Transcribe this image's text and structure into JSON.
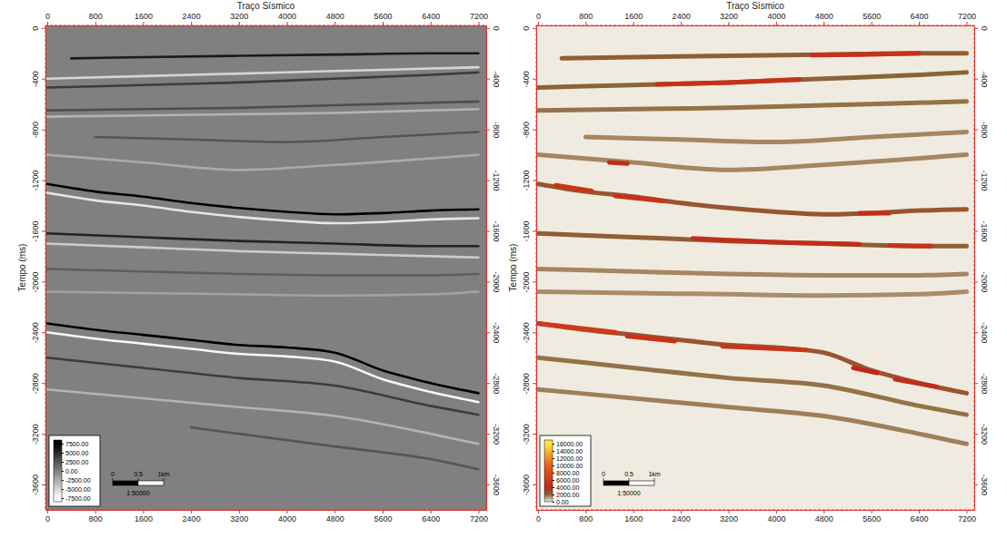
{
  "chart_data": [
    {
      "type": "seismic",
      "x_label": "Traço Sísmico",
      "y_label": "Tempo (ms)",
      "xlim": [
        -30,
        7330
      ],
      "xticks": [
        0,
        800,
        1600,
        2400,
        3200,
        4000,
        4800,
        5600,
        6400,
        7200
      ],
      "ylim": [
        20,
        -3800
      ],
      "yticks": [
        0,
        -400,
        -800,
        -1200,
        -1600,
        -2000,
        -2400,
        -2800,
        -3200,
        -3600
      ],
      "series": [
        {
          "x": [
            400,
            1600,
            3200,
            4800,
            6400,
            7200
          ],
          "values": [
            -240,
            -230,
            -220,
            -210,
            -200,
            -200
          ],
          "amplitude": 6000
        },
        {
          "x": [
            0,
            1600,
            3200,
            4800,
            6400,
            7200
          ],
          "values": [
            -400,
            -380,
            -360,
            -340,
            -320,
            -310
          ],
          "amplitude": -5000
        },
        {
          "x": [
            0,
            1600,
            3200,
            4800,
            6400,
            7200
          ],
          "values": [
            -470,
            -450,
            -430,
            -400,
            -370,
            -350
          ],
          "amplitude": 4000
        },
        {
          "x": [
            0,
            1600,
            3200,
            4800,
            6400,
            7200
          ],
          "values": [
            -650,
            -640,
            -630,
            -610,
            -590,
            -580
          ],
          "amplitude": 3000
        },
        {
          "x": [
            0,
            1600,
            3200,
            4800,
            6400,
            7200
          ],
          "values": [
            -700,
            -690,
            -680,
            -670,
            -650,
            -640
          ],
          "amplitude": -3000
        },
        {
          "x": [
            800,
            2400,
            4000,
            5600,
            7200
          ],
          "values": [
            -860,
            -880,
            -900,
            -860,
            -820
          ],
          "amplitude": 2500
        },
        {
          "x": [
            0,
            1600,
            3200,
            4800,
            7200
          ],
          "values": [
            -1000,
            -1060,
            -1120,
            -1080,
            -1000
          ],
          "amplitude": -2500
        },
        {
          "x": [
            0,
            800,
            1600,
            2400,
            3200,
            4000,
            4800,
            5600,
            6400,
            7200
          ],
          "values": [
            -1230,
            -1290,
            -1330,
            -1380,
            -1420,
            -1450,
            -1470,
            -1460,
            -1440,
            -1430
          ],
          "amplitude": 7500
        },
        {
          "x": [
            0,
            800,
            1600,
            2400,
            3200,
            4000,
            4800,
            5600,
            6400,
            7200
          ],
          "values": [
            -1300,
            -1360,
            -1400,
            -1450,
            -1490,
            -1520,
            -1540,
            -1530,
            -1510,
            -1500
          ],
          "amplitude": -6000
        },
        {
          "x": [
            0,
            1600,
            3200,
            4800,
            6400,
            7200
          ],
          "values": [
            -1620,
            -1650,
            -1680,
            -1700,
            -1720,
            -1720
          ],
          "amplitude": 5500
        },
        {
          "x": [
            0,
            1600,
            3200,
            4800,
            6400,
            7200
          ],
          "values": [
            -1700,
            -1730,
            -1760,
            -1780,
            -1800,
            -1810
          ],
          "amplitude": -4500
        },
        {
          "x": [
            0,
            1600,
            3200,
            4800,
            6400,
            7200
          ],
          "values": [
            -1900,
            -1920,
            -1940,
            -1950,
            -1950,
            -1940
          ],
          "amplitude": 2000
        },
        {
          "x": [
            0,
            1600,
            3200,
            4800,
            6400,
            7200
          ],
          "values": [
            -2080,
            -2090,
            -2100,
            -2110,
            -2100,
            -2080
          ],
          "amplitude": -2000
        },
        {
          "x": [
            0,
            800,
            1600,
            2400,
            3200,
            4000,
            4800,
            5600,
            6400,
            7200
          ],
          "values": [
            -2330,
            -2380,
            -2420,
            -2460,
            -2500,
            -2520,
            -2560,
            -2700,
            -2800,
            -2880
          ],
          "amplitude": 7500
        },
        {
          "x": [
            0,
            800,
            1600,
            2400,
            3200,
            4000,
            4800,
            5600,
            6400,
            7200
          ],
          "values": [
            -2400,
            -2450,
            -2490,
            -2530,
            -2570,
            -2590,
            -2630,
            -2770,
            -2870,
            -2950
          ],
          "amplitude": -7000
        },
        {
          "x": [
            0,
            1600,
            3200,
            4800,
            6400,
            7200
          ],
          "values": [
            -2600,
            -2680,
            -2760,
            -2820,
            -2980,
            -3050
          ],
          "amplitude": 4000
        },
        {
          "x": [
            0,
            1600,
            3200,
            4800,
            6400,
            7200
          ],
          "values": [
            -2850,
            -2920,
            -2990,
            -3060,
            -3200,
            -3280
          ],
          "amplitude": -3000
        },
        {
          "x": [
            2400,
            3200,
            4800,
            6400,
            7200
          ],
          "values": [
            -3150,
            -3200,
            -3300,
            -3400,
            -3480
          ],
          "amplitude": 2500
        }
      ],
      "colorbar": {
        "range": [
          -8500,
          8500
        ],
        "stops": [
          -7500,
          7500
        ],
        "colors": [
          "#ffffff",
          "#000000"
        ],
        "ticks": [
          {
            "value": 7500,
            "label": "7500.00"
          },
          {
            "value": 5000,
            "label": "5000.00"
          },
          {
            "value": 2500,
            "label": "2500.00"
          },
          {
            "value": 0,
            "label": "0.00"
          },
          {
            "value": -2500,
            "label": "-2500.00"
          },
          {
            "value": -5000,
            "label": "-5000.00"
          },
          {
            "value": -7500,
            "label": "-7500.00"
          }
        ]
      },
      "scale_bar": {
        "ticks": [
          {
            "value": 0,
            "label": "0"
          },
          {
            "value": 0.5,
            "label": "0.5"
          },
          {
            "value": 1,
            "label": "1km"
          }
        ],
        "label": "1:50000"
      }
    },
    {
      "type": "amplitude",
      "x_label": "Traço Sísmico",
      "y_label": "Tempo (ms)",
      "xlim": [
        -30,
        7330
      ],
      "xticks": [
        0,
        800,
        1600,
        2400,
        3200,
        4000,
        4800,
        5600,
        6400,
        7200
      ],
      "ylim": [
        20,
        -3800
      ],
      "yticks": [
        0,
        -400,
        -800,
        -1200,
        -1600,
        -2000,
        -2400,
        -2800,
        -3200,
        -3600
      ],
      "series": [
        {
          "x": [
            400,
            1600,
            3200,
            4800,
            6400,
            7200
          ],
          "values": [
            -240,
            -230,
            -220,
            -210,
            -200,
            -200
          ],
          "amplitude": 2200
        },
        {
          "x": [
            0,
            1600,
            3200,
            4800,
            6400,
            7200
          ],
          "values": [
            -470,
            -450,
            -430,
            -400,
            -370,
            -350
          ],
          "amplitude": 2000
        },
        {
          "x": [
            0,
            1600,
            3200,
            4800,
            6400,
            7200
          ],
          "values": [
            -650,
            -640,
            -630,
            -610,
            -590,
            -580
          ],
          "amplitude": 1800
        },
        {
          "x": [
            800,
            2400,
            4000,
            5600,
            7200
          ],
          "values": [
            -860,
            -880,
            -900,
            -860,
            -820
          ],
          "amplitude": 1500
        },
        {
          "x": [
            0,
            1600,
            3200,
            4800,
            7200
          ],
          "values": [
            -1000,
            -1060,
            -1120,
            -1080,
            -1000
          ],
          "amplitude": 1500
        },
        {
          "x": [
            0,
            800,
            1600,
            2400,
            3200,
            4000,
            4800,
            5600,
            6400,
            7200
          ],
          "values": [
            -1230,
            -1290,
            -1330,
            -1380,
            -1420,
            -1450,
            -1470,
            -1460,
            -1440,
            -1430
          ],
          "amplitude": 2500
        },
        {
          "x": [
            0,
            1600,
            3200,
            4800,
            6400,
            7200
          ],
          "values": [
            -1620,
            -1650,
            -1680,
            -1700,
            -1720,
            -1720
          ],
          "amplitude": 2200
        },
        {
          "x": [
            0,
            1600,
            3200,
            4800,
            6400,
            7200
          ],
          "values": [
            -1900,
            -1920,
            -1940,
            -1950,
            -1950,
            -1940
          ],
          "amplitude": 1500
        },
        {
          "x": [
            0,
            1600,
            3200,
            4800,
            6400,
            7200
          ],
          "values": [
            -2080,
            -2090,
            -2100,
            -2110,
            -2100,
            -2080
          ],
          "amplitude": 1400
        },
        {
          "x": [
            0,
            800,
            1600,
            2400,
            3200,
            4000,
            4800,
            5600,
            6400,
            7200
          ],
          "values": [
            -2330,
            -2380,
            -2420,
            -2460,
            -2500,
            -2520,
            -2560,
            -2700,
            -2800,
            -2880
          ],
          "amplitude": 2500
        },
        {
          "x": [
            0,
            1600,
            3200,
            4800,
            6400,
            7200
          ],
          "values": [
            -2600,
            -2680,
            -2760,
            -2820,
            -2980,
            -3050
          ],
          "amplitude": 1800
        },
        {
          "x": [
            0,
            1600,
            3200,
            4800,
            6400,
            7200
          ],
          "values": [
            -2850,
            -2920,
            -2990,
            -3060,
            -3200,
            -3280
          ],
          "amplitude": 1600
        },
        {
          "x": [
            4600,
            5400,
            6400
          ],
          "values": [
            -215,
            -210,
            -200
          ],
          "amplitude": 5000
        },
        {
          "x": [
            2000,
            3200,
            4400
          ],
          "values": [
            -445,
            -430,
            -405
          ],
          "amplitude": 5000
        },
        {
          "x": [
            1200,
            1500
          ],
          "values": [
            -1060,
            -1070
          ],
          "amplitude": 4500
        },
        {
          "x": [
            300,
            900
          ],
          "values": [
            -1240,
            -1285
          ],
          "amplitude": 5500
        },
        {
          "x": [
            1300,
            2100
          ],
          "values": [
            -1325,
            -1365
          ],
          "amplitude": 5000
        },
        {
          "x": [
            5400,
            5900
          ],
          "values": [
            -1460,
            -1460
          ],
          "amplitude": 4500
        },
        {
          "x": [
            2600,
            4000,
            5400
          ],
          "values": [
            -1660,
            -1690,
            -1705
          ],
          "amplitude": 4500
        },
        {
          "x": [
            5900,
            6600
          ],
          "values": [
            -1715,
            -1720
          ],
          "amplitude": 5000
        },
        {
          "x": [
            0,
            1300
          ],
          "values": [
            -2330,
            -2400
          ],
          "amplitude": 6000
        },
        {
          "x": [
            1500,
            2300
          ],
          "values": [
            -2430,
            -2470
          ],
          "amplitude": 5000
        },
        {
          "x": [
            3100,
            4500
          ],
          "values": [
            -2510,
            -2540
          ],
          "amplitude": 5500
        },
        {
          "x": [
            5300,
            5700
          ],
          "values": [
            -2680,
            -2720
          ],
          "amplitude": 4000
        },
        {
          "x": [
            6000,
            6700
          ],
          "values": [
            -2770,
            -2830
          ],
          "amplitude": 4500
        }
      ],
      "colorbar": {
        "range": [
          0,
          17000
        ],
        "stops": [
          0,
          2000,
          4000,
          10000,
          16000
        ],
        "colors": [
          "#f0ebe0",
          "#8a6437",
          "#c0271a",
          "#e8601a",
          "#ffe640"
        ],
        "ticks": [
          {
            "value": 16000,
            "label": "16000.00"
          },
          {
            "value": 14000,
            "label": "14000.00"
          },
          {
            "value": 12000,
            "label": "12000.00"
          },
          {
            "value": 10000,
            "label": "10000.00"
          },
          {
            "value": 8000,
            "label": "8000.00"
          },
          {
            "value": 6000,
            "label": "6000.00"
          },
          {
            "value": 4000,
            "label": "4000.00"
          },
          {
            "value": 2000,
            "label": "2000.00"
          },
          {
            "value": 0,
            "label": "0.00"
          }
        ]
      },
      "scale_bar": {
        "ticks": [
          {
            "value": 0,
            "label": "0"
          },
          {
            "value": 0.5,
            "label": "0.5"
          },
          {
            "value": 1,
            "label": "1km"
          }
        ],
        "label": "1:50000"
      }
    }
  ]
}
